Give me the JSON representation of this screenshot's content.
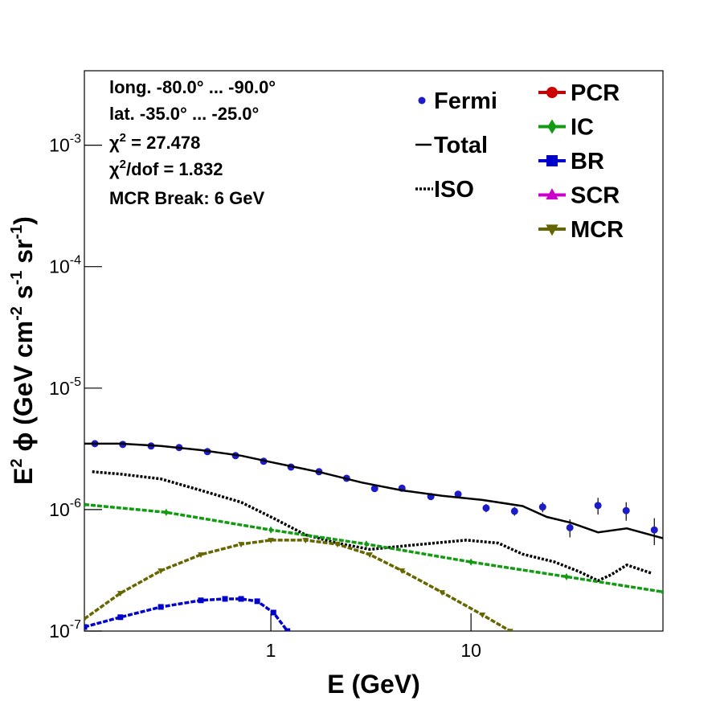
{
  "chart_data": {
    "type": "line",
    "x_label": "E (GeV)",
    "y_label_parts": [
      "E",
      "2",
      " ϕ (GeV cm",
      "-2",
      " s",
      "-1",
      " sr",
      "-1",
      ")"
    ],
    "annotations": [
      [
        "long. -80.0° ... -90.0°"
      ],
      [
        "lat. -35.0° ... -25.0°"
      ],
      [
        "χ",
        "2",
        " = 27.478"
      ],
      [
        "χ",
        "2",
        "/dof = 1.832"
      ],
      [
        "MCR Break:  6 GeV"
      ]
    ],
    "xscale": "log",
    "yscale": "log",
    "xlim": [
      0.117,
      91
    ],
    "ylim": [
      1e-07,
      0.0041
    ],
    "xticks": [
      1,
      10
    ],
    "yticks": [
      {
        "value": 1e-07,
        "label": "10-7"
      },
      {
        "value": 1e-06,
        "label": "10-6"
      },
      {
        "value": 1e-05,
        "label": "10-5"
      },
      {
        "value": 0.0001,
        "label": "10-4"
      },
      {
        "value": 0.001,
        "label": "10-3"
      }
    ],
    "series": [
      {
        "name": "Fermi",
        "color": "#1c1cc8",
        "marker": "circle",
        "line": "none",
        "x": [
          0.132,
          0.182,
          0.252,
          0.348,
          0.482,
          0.666,
          0.92,
          1.26,
          1.74,
          2.39,
          3.3,
          4.52,
          6.3,
          8.62,
          11.9,
          16.5,
          22.8,
          31.2,
          43.1,
          59.6,
          82.4
        ],
        "values": [
          3.49e-06,
          3.44e-06,
          3.34e-06,
          3.24e-06,
          3e-06,
          2.78e-06,
          2.5e-06,
          2.24e-06,
          2.05e-06,
          1.81e-06,
          1.49e-06,
          1.5e-06,
          1.28e-06,
          1.34e-06,
          1.03e-06,
          9.7e-07,
          1.05e-06,
          7.1e-07,
          1.08e-06,
          9.8e-07,
          6.8e-07
        ],
        "errors": [
          5e-08,
          5e-08,
          5e-08,
          5e-08,
          5e-08,
          5e-08,
          5e-08,
          5e-08,
          5e-08,
          5e-08,
          5e-08,
          5e-08,
          5e-08,
          7e-08,
          8e-08,
          8e-08,
          1e-07,
          1.2e-07,
          1.7e-07,
          1.7e-07,
          1.7e-07
        ]
      },
      {
        "name": "Total",
        "color": "#000000",
        "marker": "none",
        "line": "solid",
        "x": [
          0.117,
          0.177,
          0.282,
          0.447,
          0.71,
          1,
          1.79,
          2.84,
          4.52,
          7.17,
          11.4,
          18.1,
          23.9,
          31.5,
          43.1,
          60.1,
          91
        ],
        "values": [
          3.49e-06,
          3.49e-06,
          3.34e-06,
          3.09e-06,
          2.78e-06,
          2.46e-06,
          2.02e-06,
          1.67e-06,
          1.44e-06,
          1.3e-06,
          1.2e-06,
          1.07e-06,
          8.7e-07,
          7.8e-07,
          6.5e-07,
          7e-07,
          5.8e-07
        ]
      },
      {
        "name": "ISO",
        "color": "#000000",
        "marker": "none",
        "line": "dotted",
        "x": [
          0.128,
          0.177,
          0.282,
          0.447,
          0.71,
          1.03,
          1.49,
          2.15,
          3.12,
          4.52,
          6.53,
          9.46,
          13.7,
          18.1,
          26.2,
          34.5,
          43.1,
          50,
          60.1,
          79.4
        ],
        "values": [
          2.05e-06,
          1.96e-06,
          1.79e-06,
          1.44e-06,
          1.15e-06,
          8.5e-07,
          6.2e-07,
          5.3e-07,
          4.7e-07,
          5e-07,
          5.3e-07,
          5.6e-07,
          5.3e-07,
          4.3e-07,
          3.7e-07,
          3.1e-07,
          2.6e-07,
          2.9e-07,
          3.5e-07,
          3e-07
        ]
      },
      {
        "name": "PCR",
        "color": "#cc0000",
        "marker": "circle",
        "line": "dashed",
        "x": [],
        "values": []
      },
      {
        "name": "IC",
        "color": "#139a13",
        "marker": "diamond",
        "line": "dashed",
        "x": [
          0.117,
          0.3,
          1,
          3,
          10,
          30,
          91
        ],
        "values": [
          1.1e-06,
          9.5e-07,
          6.8e-07,
          5.2e-07,
          3.7e-07,
          2.8e-07,
          2.1e-07
        ]
      },
      {
        "name": "BR",
        "color": "#0000cc",
        "marker": "square",
        "line": "dashed",
        "x": [
          0.117,
          0.177,
          0.282,
          0.447,
          0.59,
          0.71,
          0.855,
          1.03,
          1.21
        ],
        "values": [
          1.08e-07,
          1.3e-07,
          1.58e-07,
          1.79e-07,
          1.84e-07,
          1.84e-07,
          1.76e-07,
          1.42e-07,
          1e-07
        ]
      },
      {
        "name": "SCR",
        "color": "#cc00cc",
        "marker": "triangle-up",
        "line": "dashed",
        "x": [],
        "values": []
      },
      {
        "name": "MCR",
        "color": "#666600",
        "marker": "triangle-down",
        "line": "dashed",
        "x": [
          0.117,
          0.177,
          0.282,
          0.447,
          0.71,
          1,
          1.49,
          2.15,
          3.12,
          4.52,
          7.17,
          11.4,
          15.7
        ],
        "values": [
          1.26e-07,
          2.05e-07,
          3.14e-07,
          4.26e-07,
          5.19e-07,
          5.6e-07,
          5.6e-07,
          5.19e-07,
          4.26e-07,
          3.14e-07,
          2.08e-07,
          1.36e-07,
          1e-07
        ]
      }
    ]
  }
}
